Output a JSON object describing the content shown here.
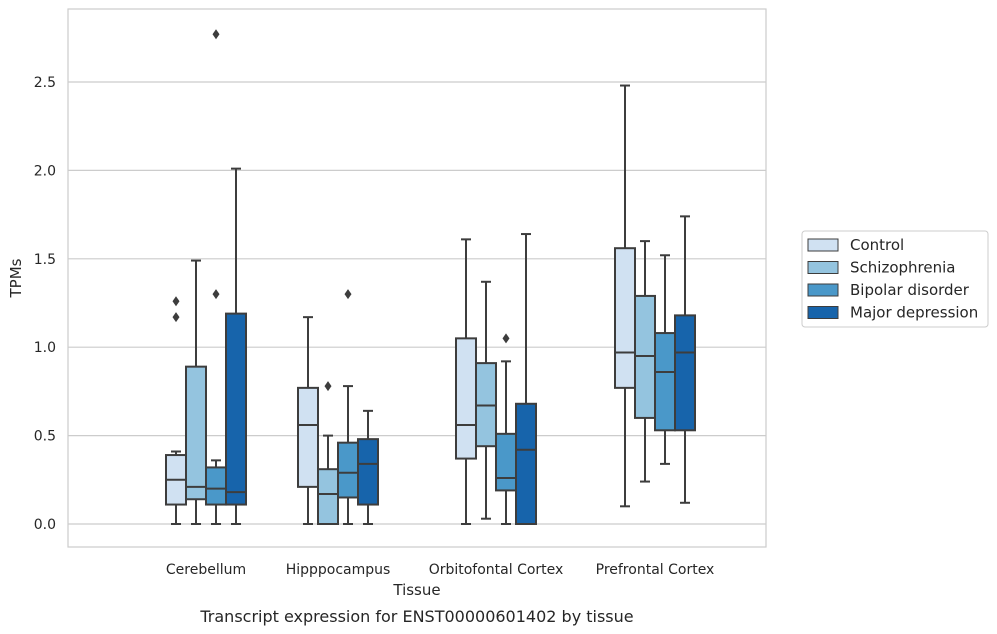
{
  "caption": "Transcript expression for ENST00000601402 by tissue",
  "chart_data": {
    "type": "box",
    "title": "",
    "xlabel": "Tissue",
    "ylabel": "TPMs",
    "categories": [
      "Cerebellum",
      "Hipppocampus",
      "Orbitofontal Cortex",
      "Prefrontal Cortex"
    ],
    "ylim": [
      -0.13,
      2.9
    ],
    "yticks": [
      0.0,
      0.5,
      1.0,
      1.5,
      2.0,
      2.5
    ],
    "ytick_labels": [
      "0.0",
      "0.5",
      "1.0",
      "1.5",
      "2.0",
      "2.5"
    ],
    "grid": "horizontal",
    "legend_position": "right",
    "series": [
      {
        "name": "Control",
        "color": "#d0e1f2",
        "boxes": [
          {
            "whislo": 0.0,
            "q1": 0.11,
            "med": 0.25,
            "q3": 0.39,
            "whishi": 0.41,
            "fliers": [
              1.17,
              1.26
            ]
          },
          {
            "whislo": 0.0,
            "q1": 0.21,
            "med": 0.56,
            "q3": 0.77,
            "whishi": 1.17,
            "fliers": []
          },
          {
            "whislo": 0.0,
            "q1": 0.37,
            "med": 0.56,
            "q3": 1.05,
            "whishi": 1.61,
            "fliers": []
          },
          {
            "whislo": 0.1,
            "q1": 0.77,
            "med": 0.97,
            "q3": 1.56,
            "whishi": 2.48,
            "fliers": []
          }
        ]
      },
      {
        "name": "Schizophrenia",
        "color": "#94c4df",
        "boxes": [
          {
            "whislo": 0.0,
            "q1": 0.14,
            "med": 0.21,
            "q3": 0.89,
            "whishi": 1.49,
            "fliers": []
          },
          {
            "whislo": 0.0,
            "q1": 0.0,
            "med": 0.17,
            "q3": 0.31,
            "whishi": 0.5,
            "fliers": [
              0.78
            ]
          },
          {
            "whislo": 0.03,
            "q1": 0.44,
            "med": 0.67,
            "q3": 0.91,
            "whishi": 1.37,
            "fliers": []
          },
          {
            "whislo": 0.24,
            "q1": 0.6,
            "med": 0.95,
            "q3": 1.29,
            "whishi": 1.6,
            "fliers": []
          }
        ]
      },
      {
        "name": "Bipolar disorder",
        "color": "#4a98c9",
        "boxes": [
          {
            "whislo": 0.0,
            "q1": 0.11,
            "med": 0.2,
            "q3": 0.32,
            "whishi": 0.36,
            "fliers": [
              1.3,
              2.77
            ]
          },
          {
            "whislo": 0.0,
            "q1": 0.15,
            "med": 0.29,
            "q3": 0.46,
            "whishi": 0.78,
            "fliers": [
              1.3
            ]
          },
          {
            "whislo": 0.0,
            "q1": 0.19,
            "med": 0.26,
            "q3": 0.51,
            "whishi": 0.92,
            "fliers": [
              1.05
            ]
          },
          {
            "whislo": 0.34,
            "q1": 0.53,
            "med": 0.86,
            "q3": 1.08,
            "whishi": 1.52,
            "fliers": []
          }
        ]
      },
      {
        "name": "Major depression",
        "color": "#1764ab",
        "boxes": [
          {
            "whislo": 0.0,
            "q1": 0.11,
            "med": 0.18,
            "q3": 1.19,
            "whishi": 2.01,
            "fliers": []
          },
          {
            "whislo": 0.0,
            "q1": 0.11,
            "med": 0.34,
            "q3": 0.48,
            "whishi": 0.64,
            "fliers": []
          },
          {
            "whislo": 0.0,
            "q1": 0.0,
            "med": 0.42,
            "q3": 0.68,
            "whishi": 1.64,
            "fliers": []
          },
          {
            "whislo": 0.12,
            "q1": 0.53,
            "med": 0.97,
            "q3": 1.18,
            "whishi": 1.74,
            "fliers": []
          }
        ]
      }
    ]
  }
}
